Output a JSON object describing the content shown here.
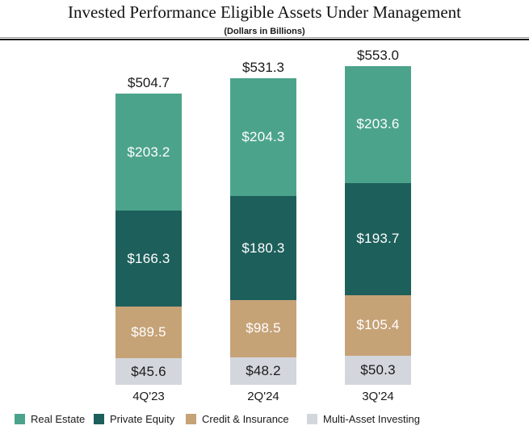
{
  "header": {
    "title": "Invested Performance Eligible Assets Under Management",
    "subtitle": "(Dollars in Billions)"
  },
  "chart_data": {
    "type": "bar",
    "stacked": true,
    "title": "Invested Performance Eligible Assets Under Management",
    "subtitle": "(Dollars in Billions)",
    "categories": [
      "4Q'23",
      "2Q'24",
      "3Q'24"
    ],
    "series": [
      {
        "name": "Real Estate",
        "color": "#4CA38C",
        "label_color": "#FFFFFF",
        "values": [
          203.2,
          204.3,
          203.6
        ]
      },
      {
        "name": "Private Equity",
        "color": "#1D5F5B",
        "label_color": "#FFFFFF",
        "values": [
          166.3,
          180.3,
          193.7
        ]
      },
      {
        "name": "Credit & Insurance",
        "color": "#C6A277",
        "label_color": "#FFFFFF",
        "values": [
          89.5,
          98.5,
          105.4
        ]
      },
      {
        "name": "Multi-Asset Investing",
        "color": "#D3D6DC",
        "label_color": "#1A1A1A",
        "values": [
          45.6,
          48.2,
          50.3
        ]
      }
    ],
    "stack_order_top_to_bottom": [
      "Real Estate",
      "Private Equity",
      "Credit & Insurance",
      "Multi-Asset Investing"
    ],
    "totals": [
      504.7,
      531.3,
      553.0
    ],
    "value_prefix": "$",
    "value_labels": true,
    "grid": false,
    "axes_shown": false,
    "legend_position": "bottom"
  }
}
